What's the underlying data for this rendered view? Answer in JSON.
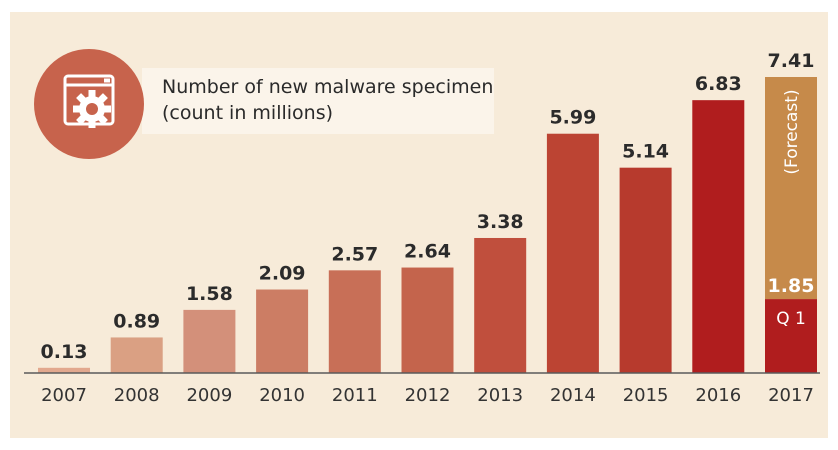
{
  "legend": {
    "line1": "Number of new malware specimen",
    "line2": "(count in millions)",
    "icon": "malware-window-gear-icon"
  },
  "colors": {
    "panel": "#f7ebd9",
    "forecast": "#c68a4a",
    "icon_circle": "#c7634c",
    "q1": "#b01d1e"
  },
  "chart_data": {
    "type": "bar",
    "categories": [
      "2007",
      "2008",
      "2009",
      "2010",
      "2011",
      "2012",
      "2013",
      "2014",
      "2015",
      "2016",
      "2017"
    ],
    "values": [
      0.13,
      0.89,
      1.58,
      2.09,
      2.57,
      2.64,
      3.38,
      5.99,
      5.14,
      6.83,
      7.41
    ],
    "value_labels": [
      "0.13",
      "0.89",
      "1.58",
      "2.09",
      "2.57",
      "2.64",
      "3.38",
      "5.99",
      "5.14",
      "6.83",
      "7.41"
    ],
    "bar_colors": [
      "#e2a88e",
      "#daa083",
      "#d3907a",
      "#cc7d64",
      "#c86f57",
      "#c4644c",
      "#c04f3d",
      "#bc4433",
      "#b73a2d",
      "#b01d1e",
      "#c68a4a"
    ],
    "segment_2017": {
      "q1_value": 1.85,
      "q1_label": "1.85",
      "q1_text": "Q 1",
      "forecast_text": "(Forecast)"
    },
    "ylim": [
      0,
      7.5
    ],
    "grid": false,
    "xlabel": "",
    "ylabel": ""
  }
}
